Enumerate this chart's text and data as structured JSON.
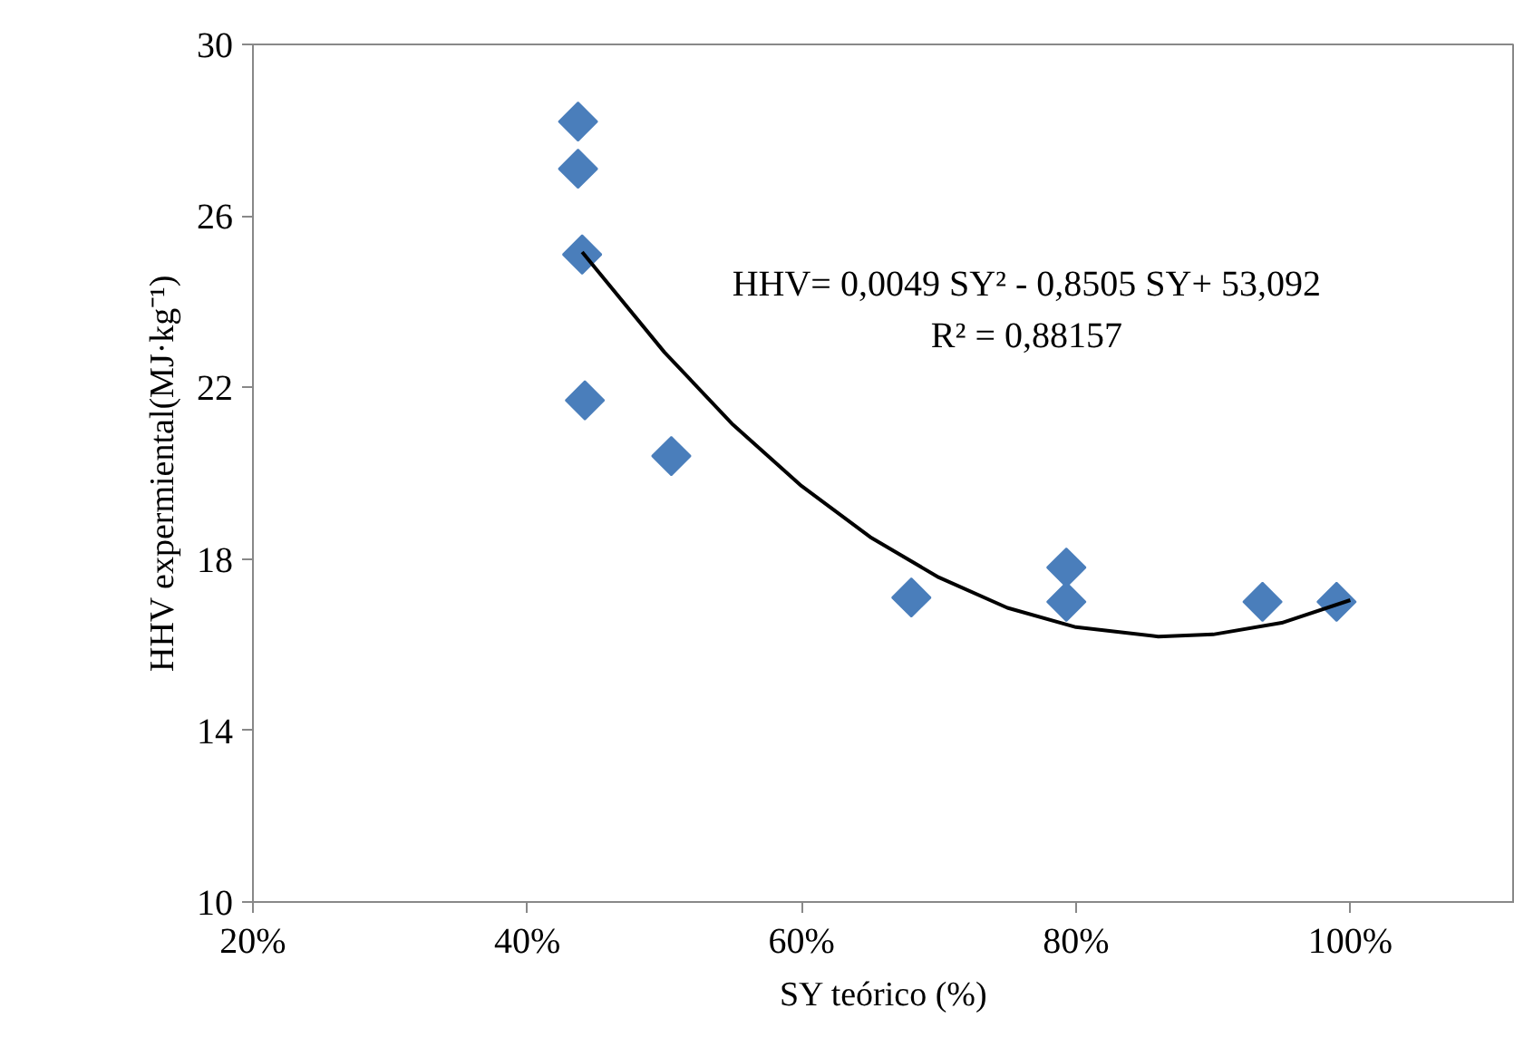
{
  "chart_data": {
    "type": "scatter",
    "xlabel": "SY teórico (%)",
    "ylabel": "HHV expermiental(MJ·kg⁻¹)",
    "xlim": [
      20,
      112
    ],
    "xticks": [
      {
        "value": 20,
        "label": "20%"
      },
      {
        "value": 40,
        "label": "40%"
      },
      {
        "value": 60,
        "label": "60%"
      },
      {
        "value": 80,
        "label": "80%"
      },
      {
        "value": 100,
        "label": "100%"
      }
    ],
    "ylim": [
      10,
      30
    ],
    "yticks": [
      10,
      14,
      18,
      22,
      26,
      30
    ],
    "grid": false,
    "series": [
      {
        "color": "#4a7ebb",
        "marker": "diamond",
        "x": [
          43.7,
          43.7,
          44.0,
          44.2,
          50.5,
          68.0,
          79.3,
          79.3,
          93.4,
          93.6,
          99.0
        ],
        "values": [
          28.2,
          27.1,
          25.1,
          21.7,
          20.4,
          17.1,
          17.8,
          17.0,
          null,
          17.0,
          17.0
        ]
      },
      {
        "type": "line",
        "color": "#000000",
        "x": [
          44,
          50,
          55,
          60,
          65,
          70,
          75,
          80,
          86,
          90,
          95,
          100
        ],
        "values": [
          25.16,
          22.82,
          21.13,
          19.7,
          18.51,
          17.57,
          16.86,
          16.41,
          16.19,
          16.24,
          16.51,
          17.04
        ]
      }
    ],
    "annotations": [
      "HHV= 0,0049 SY² - 0,8505 SY+ 53,092",
      "R² = 0,88157"
    ]
  }
}
